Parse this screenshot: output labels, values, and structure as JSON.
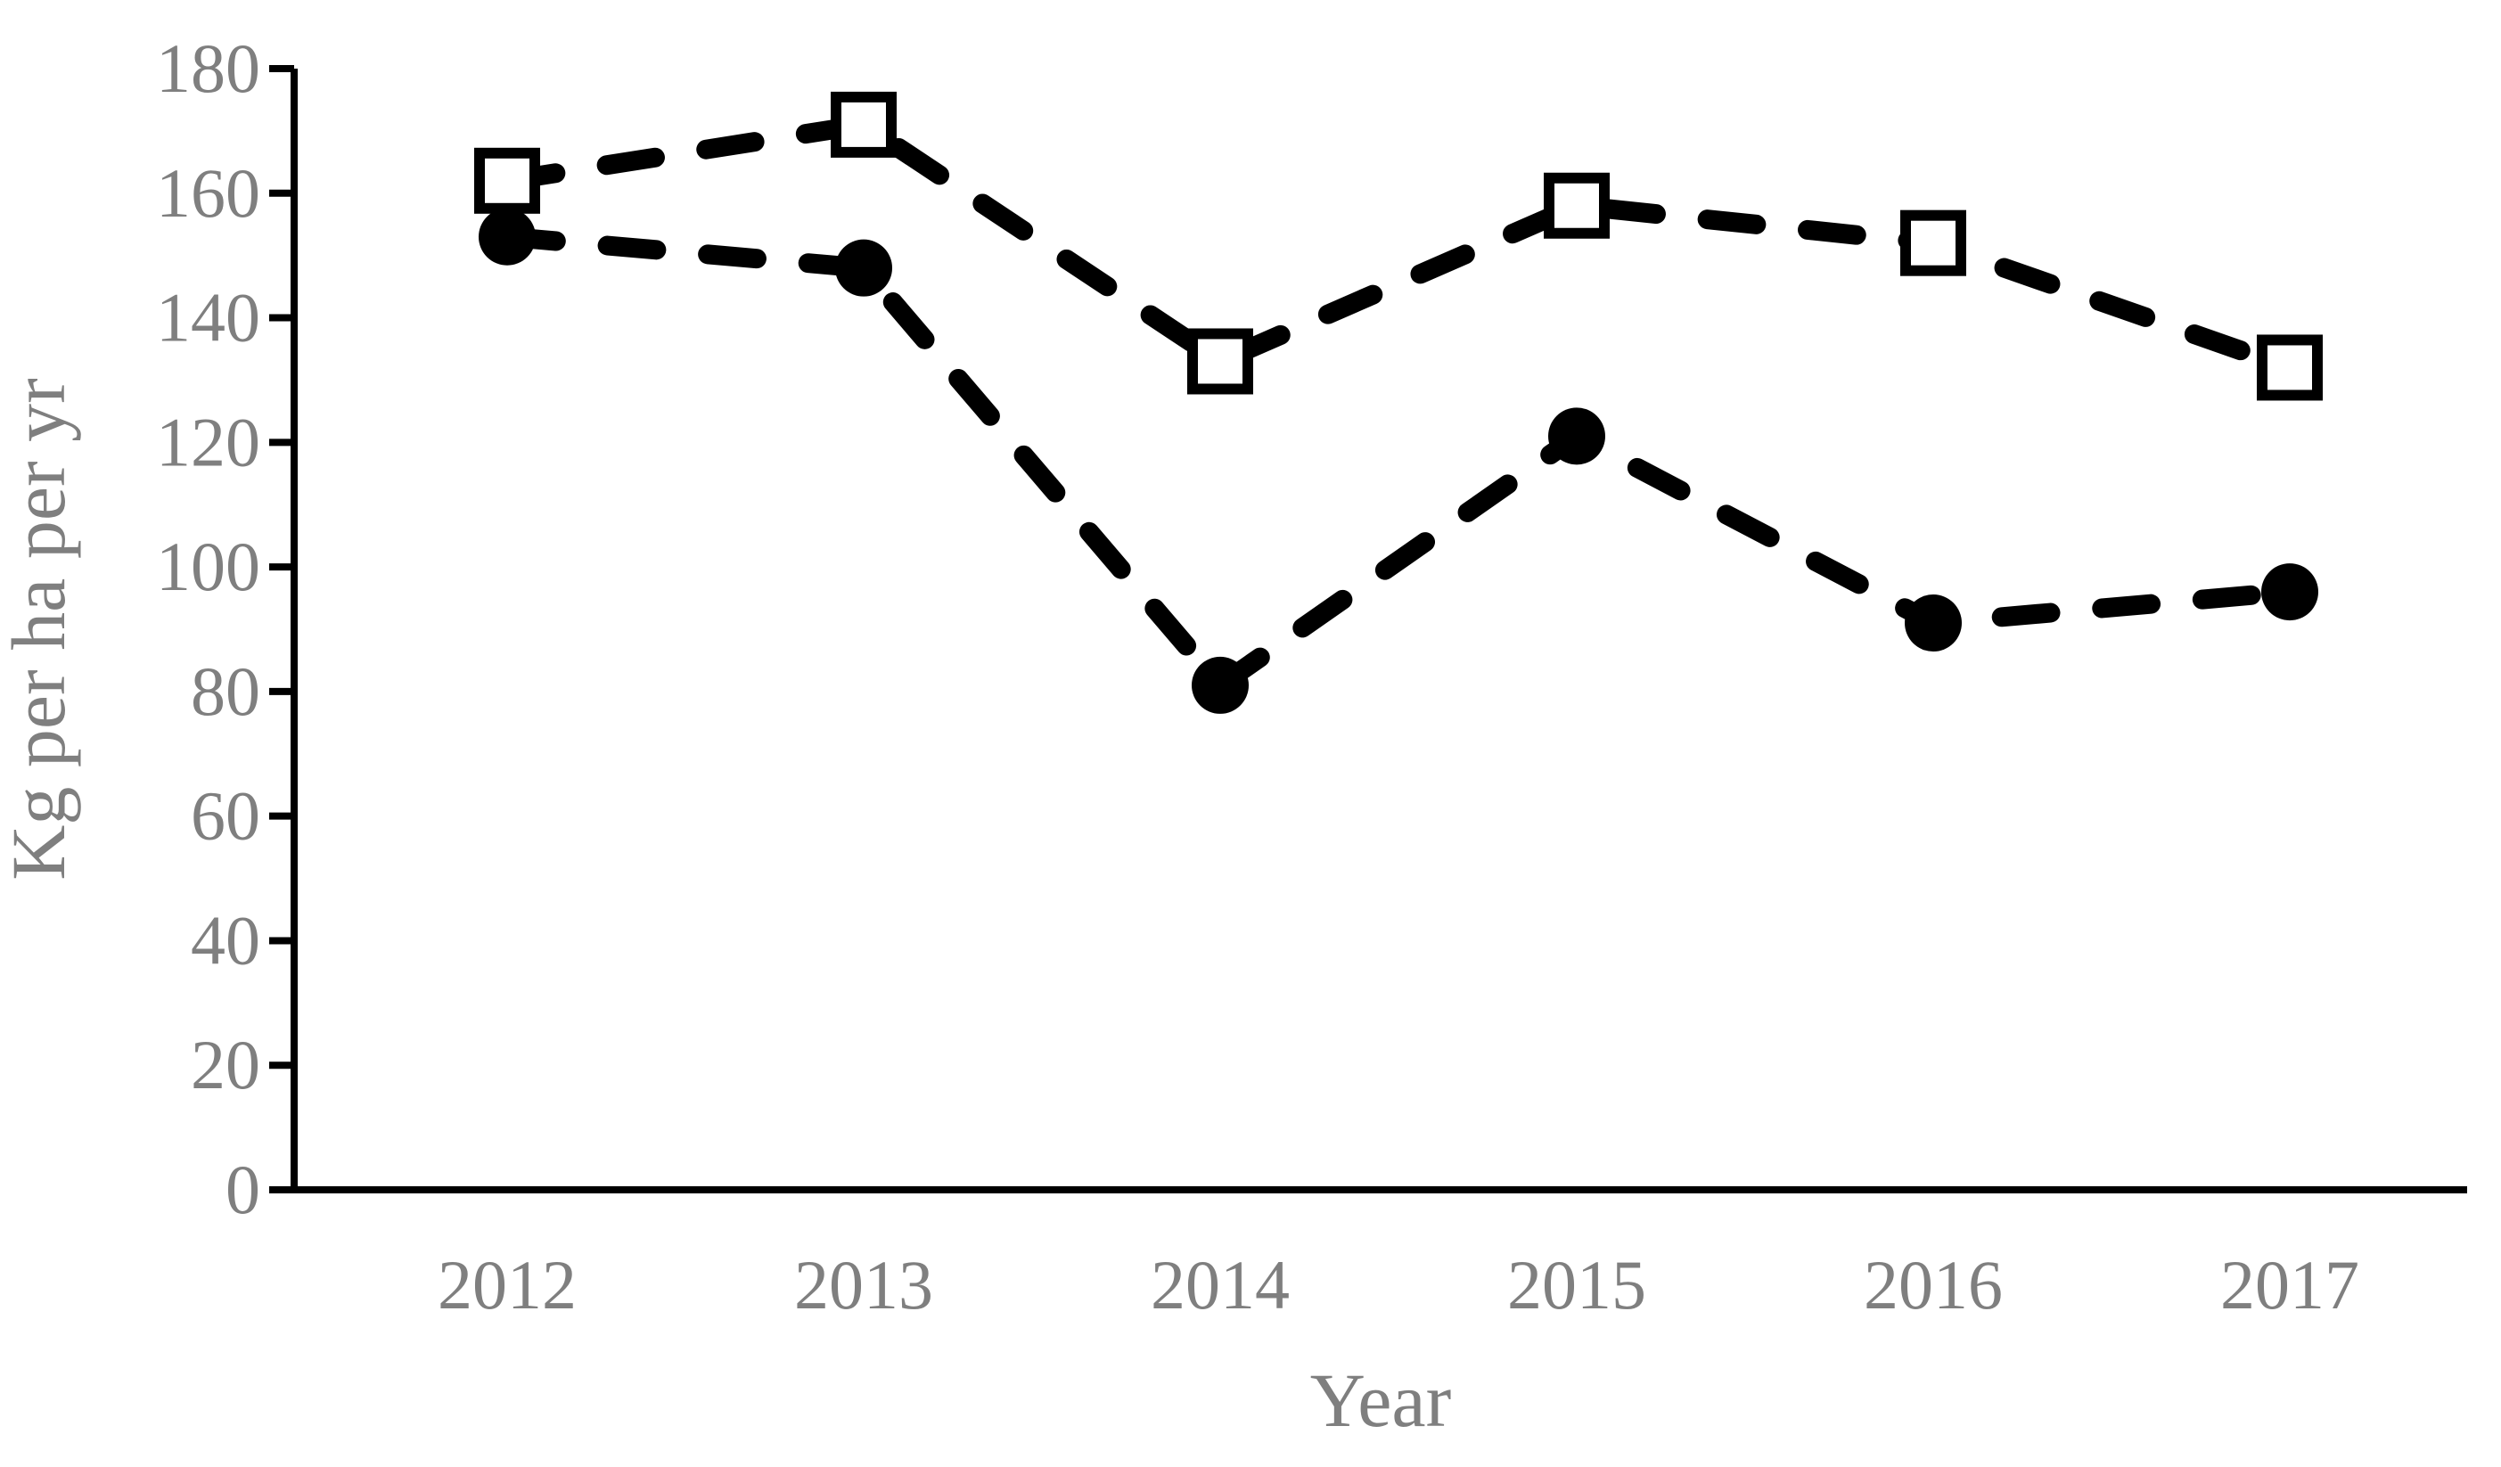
{
  "chart_data": {
    "type": "line",
    "title": "",
    "xlabel": "Year",
    "ylabel": "Kg per ha per yr",
    "categories": [
      "2012",
      "2013",
      "2014",
      "2015",
      "2016",
      "2017"
    ],
    "series": [
      {
        "name": "open-squares-series",
        "marker": "open-square",
        "line_style": "dashed",
        "color": "#000000",
        "values": [
          162,
          171,
          133,
          158,
          152,
          132
        ]
      },
      {
        "name": "filled-circles-series",
        "marker": "filled-circle",
        "line_style": "dashed",
        "color": "#000000",
        "values": [
          153,
          148,
          81,
          121,
          91,
          96
        ]
      }
    ],
    "ylim": [
      0,
      180
    ],
    "ytick_step": 20,
    "yticks": [
      0,
      20,
      40,
      60,
      80,
      100,
      120,
      140,
      160,
      180
    ],
    "grid": false,
    "legend_position": "none",
    "axis_color": "#000000",
    "tick_label_color": "#7f7f7f",
    "axis_title_color": "#7f7f7f",
    "series_line_color": "#000000"
  }
}
